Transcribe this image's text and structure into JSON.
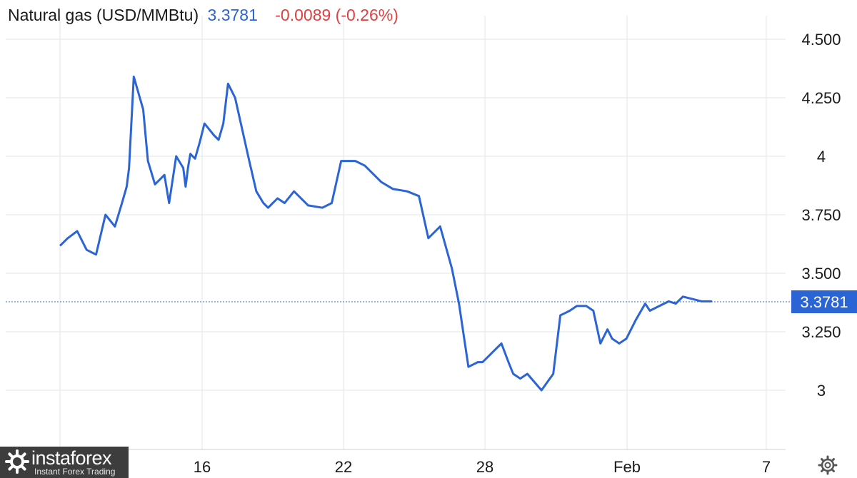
{
  "header": {
    "title": "Natural gas (USD/MMBtu)",
    "price": "3.3781",
    "change": "-0.0089 (-0.26%)"
  },
  "watermark": {
    "brand": "instaforex",
    "tagline": "Instant Forex Trading"
  },
  "icons": {
    "settings": "gear-icon",
    "brand_logo": "instaforex-logo-icon"
  },
  "colors": {
    "line": "#2b64d4",
    "negative": "#e04040",
    "grid": "#e6e6e6",
    "text": "#1a1a1a"
  },
  "chart_data": {
    "type": "line",
    "title": "Natural gas (USD/MMBtu)",
    "xlabel": "",
    "ylabel": "",
    "x_axis_ticks": [
      "16",
      "22",
      "28",
      "Feb",
      "7"
    ],
    "y_axis_ticks": [
      "3",
      "3.250",
      "3.500",
      "3.750",
      "4",
      "4.250",
      "4.500"
    ],
    "ylim": [
      2.75,
      4.55
    ],
    "xlim": [
      10,
      38.2
    ],
    "grid": true,
    "last_value_label": "3.3781",
    "x": [
      10.0,
      10.3,
      10.7,
      11.1,
      11.5,
      11.9,
      12.3,
      12.6,
      12.8,
      12.9,
      13.1,
      13.5,
      13.7,
      14.0,
      14.4,
      14.6,
      14.9,
      15.2,
      15.3,
      15.4,
      15.5,
      15.7,
      15.9,
      16.1,
      16.5,
      16.7,
      16.9,
      17.1,
      17.4,
      18.0,
      18.3,
      18.6,
      18.8,
      19.0,
      19.2,
      19.5,
      19.9,
      20.5,
      21.1,
      21.5,
      21.9,
      22.5,
      22.9,
      23.3,
      23.6,
      24.1,
      24.7,
      25.2,
      25.6,
      26.1,
      26.6,
      26.9,
      27.3,
      27.7,
      27.9,
      28.2,
      28.4,
      28.7,
      29.0,
      29.2,
      29.5,
      29.8,
      30.4,
      30.9,
      31.2,
      31.4,
      31.6,
      31.9,
      32.3,
      32.6,
      32.9,
      33.2,
      33.4,
      33.7,
      34.0,
      34.4,
      34.8,
      35.0,
      35.4,
      35.8,
      36.1,
      36.4,
      36.8,
      37.2,
      37.6
    ],
    "values": [
      3.62,
      3.65,
      3.68,
      3.6,
      3.58,
      3.75,
      3.7,
      3.8,
      3.87,
      3.95,
      4.34,
      4.2,
      3.98,
      3.88,
      3.92,
      3.8,
      4.0,
      3.95,
      3.87,
      3.95,
      4.01,
      3.99,
      4.06,
      4.14,
      4.09,
      4.07,
      4.14,
      4.31,
      4.25,
      3.98,
      3.85,
      3.8,
      3.78,
      3.8,
      3.82,
      3.8,
      3.85,
      3.79,
      3.78,
      3.8,
      3.98,
      3.98,
      3.96,
      3.92,
      3.89,
      3.86,
      3.85,
      3.83,
      3.65,
      3.7,
      3.52,
      3.37,
      3.1,
      3.12,
      3.12,
      3.15,
      3.17,
      3.2,
      3.12,
      3.07,
      3.05,
      3.07,
      3.0,
      3.07,
      3.32,
      3.33,
      3.34,
      3.36,
      3.36,
      3.34,
      3.2,
      3.26,
      3.22,
      3.2,
      3.22,
      3.3,
      3.37,
      3.34,
      3.36,
      3.38,
      3.37,
      3.4,
      3.39,
      3.38,
      3.38
    ]
  }
}
